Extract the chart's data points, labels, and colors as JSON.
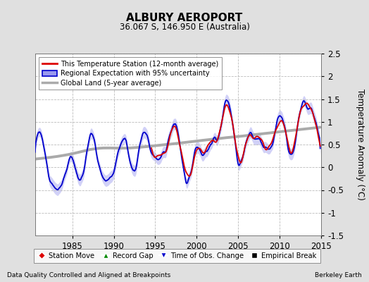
{
  "title": "ALBURY AEROPORT",
  "subtitle": "36.067 S, 146.950 E (Australia)",
  "ylabel": "Temperature Anomaly (°C)",
  "xlabel_left": "Data Quality Controlled and Aligned at Breakpoints",
  "xlabel_right": "Berkeley Earth",
  "ylim": [
    -1.5,
    2.5
  ],
  "xlim": [
    1980.5,
    2015.0
  ],
  "xticks": [
    1985,
    1990,
    1995,
    2000,
    2005,
    2010,
    2015
  ],
  "yticks": [
    -1.5,
    -1.0,
    -0.5,
    0.0,
    0.5,
    1.0,
    1.5,
    2.0,
    2.5
  ],
  "bg_color": "#e0e0e0",
  "plot_bg_color": "#ffffff",
  "grid_color": "#bbbbbb",
  "station_color": "#dd0000",
  "regional_color": "#0000cc",
  "regional_fill_color": "#9999ee",
  "global_color": "#aaaaaa",
  "legend_items": [
    "This Temperature Station (12-month average)",
    "Regional Expectation with 95% uncertainty",
    "Global Land (5-year average)"
  ],
  "marker_legend": [
    {
      "marker": "D",
      "color": "#dd0000",
      "label": "Station Move"
    },
    {
      "marker": "^",
      "color": "#008800",
      "label": "Record Gap"
    },
    {
      "marker": "v",
      "color": "#0000cc",
      "label": "Time of Obs. Change"
    },
    {
      "marker": "s",
      "color": "#000000",
      "label": "Empirical Break"
    }
  ]
}
